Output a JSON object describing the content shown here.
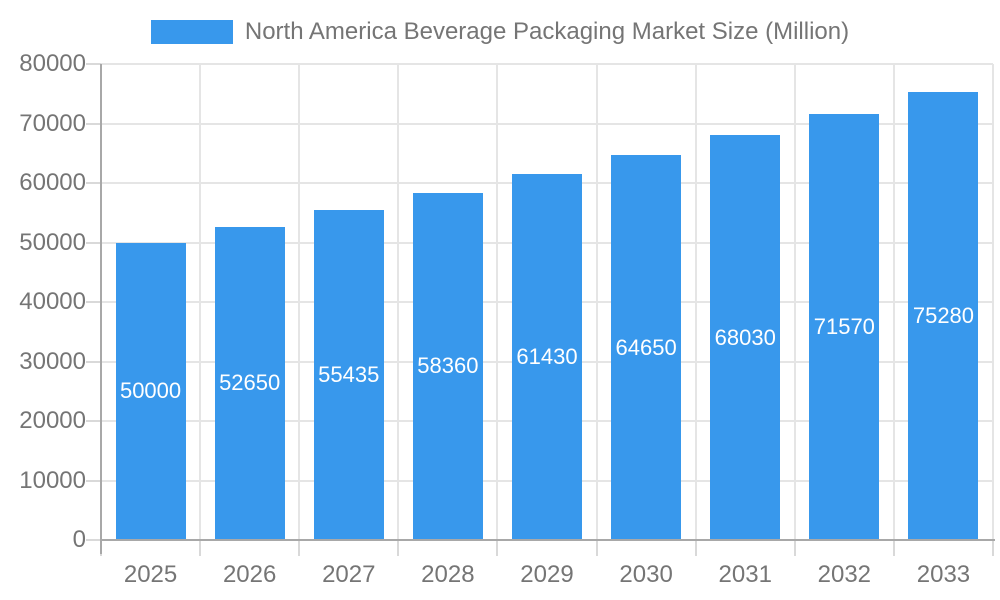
{
  "chart_data": {
    "type": "bar",
    "title": "North America Beverage Packaging Market Size (Million)",
    "categories": [
      "2025",
      "2026",
      "2027",
      "2028",
      "2029",
      "2030",
      "2031",
      "2032",
      "2033"
    ],
    "values": [
      50000,
      52650,
      55435,
      58360,
      61430,
      64650,
      68030,
      71570,
      75280
    ],
    "xlabel": "",
    "ylabel": "",
    "ylim": [
      0,
      80000
    ],
    "ytick_step": 10000,
    "ytick_labels": [
      "0",
      "10000",
      "20000",
      "30000",
      "40000",
      "50000",
      "60000",
      "70000",
      "80000"
    ],
    "grid": true,
    "legend_position": "top",
    "value_labels_position": "center-of-bar",
    "bar_color": "#3898EC",
    "value_label_color": "#FFFFFF",
    "axis_text_color": "#757575",
    "grid_color": "#E5E5E5",
    "axis_line_color": "#A8A8A8",
    "tick_color": "#D9D9D9"
  }
}
